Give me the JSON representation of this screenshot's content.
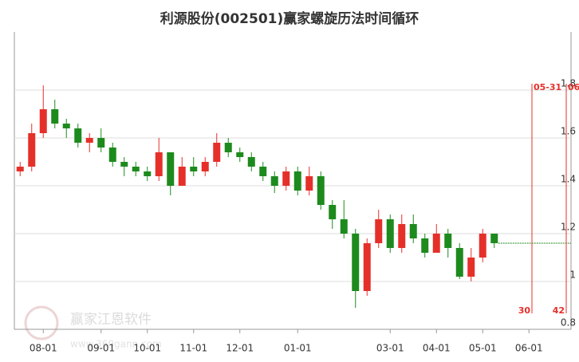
{
  "chart_data": {
    "type": "candlestick",
    "title": "利源股份(002501)赢家螺旋历法时间循环",
    "categories": [
      "",
      "",
      "08-01",
      "",
      "",
      "",
      "",
      "09-01",
      "",
      "",
      "",
      "10-01",
      "",
      "",
      "",
      "11-01",
      "",
      "",
      "",
      "12-01",
      "",
      "",
      "",
      "",
      "01-01",
      "",
      "",
      "",
      "",
      "",
      "",
      "",
      "03-01",
      "",
      "",
      "",
      "04-01",
      "",
      "",
      "",
      "05-01",
      "",
      "",
      "",
      "06-01",
      "",
      "",
      ""
    ],
    "open": [
      1.46,
      1.48,
      1.62,
      1.72,
      1.66,
      1.64,
      1.58,
      1.6,
      1.56,
      1.5,
      1.48,
      1.46,
      1.44,
      1.54,
      1.4,
      1.48,
      1.46,
      1.5,
      1.58,
      1.54,
      1.52,
      1.48,
      1.44,
      1.4,
      1.46,
      1.38,
      1.44,
      1.32,
      1.26,
      1.2,
      0.96,
      1.16,
      1.26,
      1.14,
      1.24,
      1.18,
      1.12,
      1.2,
      1.14,
      1.02,
      1.1,
      1.2,
      null,
      null,
      null,
      null,
      null,
      null
    ],
    "high": [
      1.5,
      1.66,
      1.82,
      1.76,
      1.68,
      1.66,
      1.62,
      1.64,
      1.58,
      1.52,
      1.5,
      1.48,
      1.6,
      1.54,
      1.52,
      1.52,
      1.52,
      1.62,
      1.6,
      1.56,
      1.54,
      1.5,
      1.46,
      1.48,
      1.48,
      1.48,
      1.46,
      1.34,
      1.34,
      1.22,
      1.18,
      1.3,
      1.28,
      1.28,
      1.28,
      1.2,
      1.24,
      1.22,
      1.16,
      1.14,
      1.22,
      1.2,
      null,
      null,
      null,
      null,
      null,
      null
    ],
    "low": [
      1.44,
      1.46,
      1.6,
      1.64,
      1.6,
      1.56,
      1.54,
      1.54,
      1.48,
      1.44,
      1.44,
      1.42,
      1.42,
      1.36,
      1.4,
      1.44,
      1.44,
      1.48,
      1.52,
      1.5,
      1.46,
      1.42,
      1.37,
      1.38,
      1.36,
      1.36,
      1.3,
      1.22,
      1.18,
      0.89,
      0.94,
      1.14,
      1.12,
      1.12,
      1.16,
      1.1,
      1.12,
      1.1,
      1.01,
      1.0,
      1.08,
      1.14,
      null,
      null,
      null,
      null,
      null,
      null
    ],
    "close": [
      1.48,
      1.62,
      1.72,
      1.66,
      1.64,
      1.58,
      1.6,
      1.56,
      1.5,
      1.48,
      1.46,
      1.44,
      1.54,
      1.4,
      1.48,
      1.46,
      1.5,
      1.58,
      1.54,
      1.52,
      1.48,
      1.44,
      1.4,
      1.46,
      1.38,
      1.44,
      1.32,
      1.26,
      1.2,
      0.96,
      1.16,
      1.26,
      1.14,
      1.24,
      1.18,
      1.12,
      1.2,
      1.14,
      1.02,
      1.1,
      1.2,
      1.16,
      null,
      null,
      null,
      null,
      null,
      null
    ],
    "up_color": "#e5302a",
    "down_color": "#1d8a1d",
    "projection_level": 1.16,
    "ylim": [
      0.8,
      2.0
    ],
    "yticks": [
      0.8,
      1,
      1.2,
      1.4,
      1.6,
      1.8
    ],
    "grid": true,
    "cycle_lines": [
      {
        "label": "05-31",
        "count": 30
      },
      {
        "label": "06",
        "count": 42
      }
    ],
    "watermark": "赢家江恩软件",
    "watermark_url": "www.360gann.com"
  }
}
